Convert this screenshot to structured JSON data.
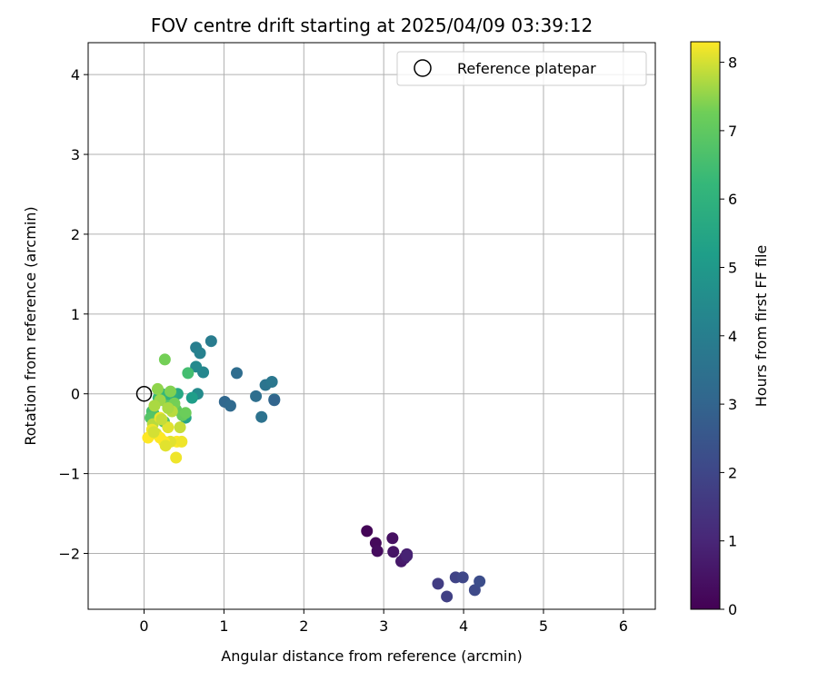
{
  "chart_data": {
    "type": "scatter",
    "title": "FOV centre drift starting at 2025/04/09 03:39:12",
    "xlabel": "Angular distance from reference (arcmin)",
    "ylabel": "Rotation from reference (arcmin)",
    "xlim": [
      -0.7,
      6.4
    ],
    "ylim": [
      -2.7,
      4.4
    ],
    "xticks": [
      0,
      1,
      2,
      3,
      4,
      5,
      6
    ],
    "yticks": [
      -2,
      -1,
      0,
      1,
      2,
      3,
      4
    ],
    "xtick_labels": [
      "0",
      "1",
      "2",
      "3",
      "4",
      "5",
      "6"
    ],
    "ytick_labels": [
      "−2",
      "−1",
      "0",
      "1",
      "2",
      "3",
      "4"
    ],
    "grid": true,
    "legend": {
      "placement": "top-right",
      "entries": [
        {
          "label": "Reference platepar",
          "marker": "open-circle",
          "color": "#000000"
        }
      ]
    },
    "reference_point": {
      "x": 0,
      "y": 0
    },
    "colorbar": {
      "label": "Hours from first FF file",
      "range": [
        0,
        8.3
      ],
      "ticks": [
        0,
        1,
        2,
        3,
        4,
        5,
        6,
        7,
        8
      ],
      "tick_labels": [
        "0",
        "1",
        "2",
        "3",
        "4",
        "5",
        "6",
        "7",
        "8"
      ],
      "colormap": "viridis"
    },
    "series": [
      {
        "x": [
          2.79,
          2.9,
          2.92,
          3.11,
          3.12,
          3.22,
          3.26,
          3.29,
          3.29,
          3.68,
          3.79,
          3.9,
          3.99,
          4.14,
          4.2,
          0.84,
          0.65,
          0.7,
          0.74,
          0.65,
          0.67,
          1.01,
          1.08,
          1.16,
          1.4,
          1.47,
          1.52,
          1.6,
          1.63,
          1.63,
          0.6,
          0.52,
          0.55,
          0.42,
          0.35,
          0.28,
          0.22,
          0.18,
          0.12,
          0.1,
          0.25,
          0.08,
          0.3,
          0.4,
          0.48,
          0.52,
          0.38,
          0.33,
          0.17,
          0.26,
          0.2,
          0.13,
          0.11,
          0.45,
          0.15,
          0.3,
          0.2,
          0.1,
          0.05,
          0.41,
          0.47,
          0.33,
          0.25,
          0.4,
          0.2,
          0.27,
          0.12,
          0.22,
          0.35,
          0.3
        ],
        "y": [
          -1.72,
          -1.87,
          -1.97,
          -1.81,
          -1.98,
          -2.1,
          -2.06,
          -2.01,
          -2.03,
          -2.38,
          -2.54,
          -2.3,
          -2.3,
          -2.46,
          -2.35,
          0.66,
          0.58,
          0.51,
          0.27,
          0.34,
          0.0,
          -0.1,
          -0.15,
          0.26,
          -0.03,
          -0.29,
          0.11,
          0.15,
          -0.07,
          -0.08,
          -0.05,
          -0.3,
          0.26,
          0.0,
          0.0,
          -0.1,
          0.0,
          -0.05,
          -0.25,
          -0.22,
          -0.35,
          -0.3,
          -0.15,
          -0.2,
          -0.27,
          -0.24,
          -0.12,
          0.03,
          0.06,
          0.43,
          -0.08,
          -0.15,
          -0.38,
          -0.42,
          -0.5,
          -0.42,
          -0.3,
          -0.45,
          -0.55,
          -0.6,
          -0.6,
          -0.6,
          -0.6,
          -0.8,
          -0.55,
          -0.65,
          -0.48,
          -0.32,
          -0.22,
          -0.18
        ],
        "hours": [
          0.1,
          0.2,
          0.3,
          0.4,
          0.5,
          0.6,
          0.7,
          0.8,
          0.9,
          1.7,
          1.8,
          1.9,
          2.0,
          2.1,
          2.2,
          3.9,
          4.0,
          4.1,
          4.3,
          4.4,
          4.5,
          3.1,
          3.2,
          3.3,
          3.4,
          3.5,
          3.6,
          3.7,
          3.8,
          3.0,
          5.2,
          5.4,
          6.5,
          5.6,
          5.8,
          6.0,
          6.2,
          6.3,
          6.4,
          6.6,
          6.7,
          6.8,
          6.9,
          7.0,
          7.1,
          7.2,
          7.3,
          7.4,
          7.5,
          7.3,
          7.6,
          7.7,
          7.8,
          7.9,
          8.0,
          8.1,
          8.2,
          8.2,
          8.3,
          8.3,
          8.2,
          8.1,
          8.3,
          8.2,
          8.3,
          8.1,
          8.0,
          7.9,
          7.8,
          7.7
        ],
        "color_by": "hours"
      }
    ]
  }
}
